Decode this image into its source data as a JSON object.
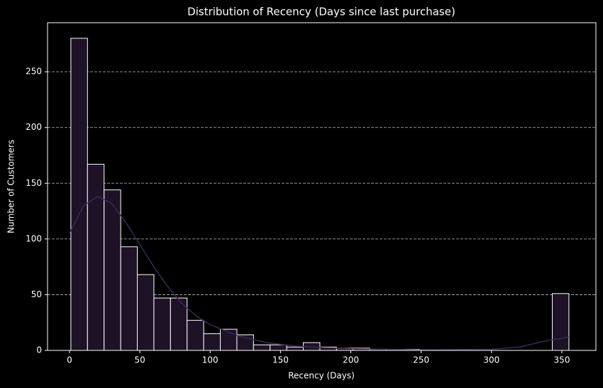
{
  "chart_data": {
    "type": "histogram",
    "title": "Distribution of Recency (Days since last purchase)",
    "x_label": "Recency (Days)",
    "y_label": "Number of Customers",
    "bins": [
      1,
      12.8,
      24.6,
      36.4,
      48.2,
      60,
      71.8,
      83.6,
      95.4,
      107.2,
      119,
      130.8,
      142.6,
      154.4,
      166.2,
      178,
      189.8,
      201.6,
      213.4,
      225.2,
      237,
      248.8,
      260.6,
      272.4,
      284.2,
      296,
      307.8,
      319.6,
      331.4,
      343.2,
      355
    ],
    "counts": [
      280,
      167,
      144,
      93,
      68,
      47,
      47,
      27,
      15,
      19,
      14,
      5,
      5,
      3,
      7,
      3,
      2,
      2,
      1,
      0,
      1,
      0,
      0,
      0,
      0,
      0,
      0,
      0,
      0,
      51
    ],
    "color": "#1e1226",
    "edge_color": "#ffffff",
    "kde": {
      "color": "#3a2a55",
      "x": [
        0,
        10,
        20,
        30,
        40,
        50,
        60,
        70,
        80,
        90,
        100,
        120,
        140,
        160,
        180,
        200,
        250,
        300,
        320,
        340,
        355
      ],
      "values": [
        105,
        130,
        138,
        132,
        115,
        95,
        75,
        57,
        42,
        31,
        23,
        13,
        7,
        4,
        2.5,
        1.5,
        0.5,
        1,
        3,
        9,
        12
      ]
    },
    "xlim": [
      -15.6,
      374.2
    ],
    "ylim": [
      0,
      294
    ],
    "xticks": [
      0,
      50,
      100,
      150,
      200,
      250,
      300,
      350
    ],
    "yticks": [
      0,
      50,
      100,
      150,
      200,
      250
    ],
    "grid": true
  }
}
